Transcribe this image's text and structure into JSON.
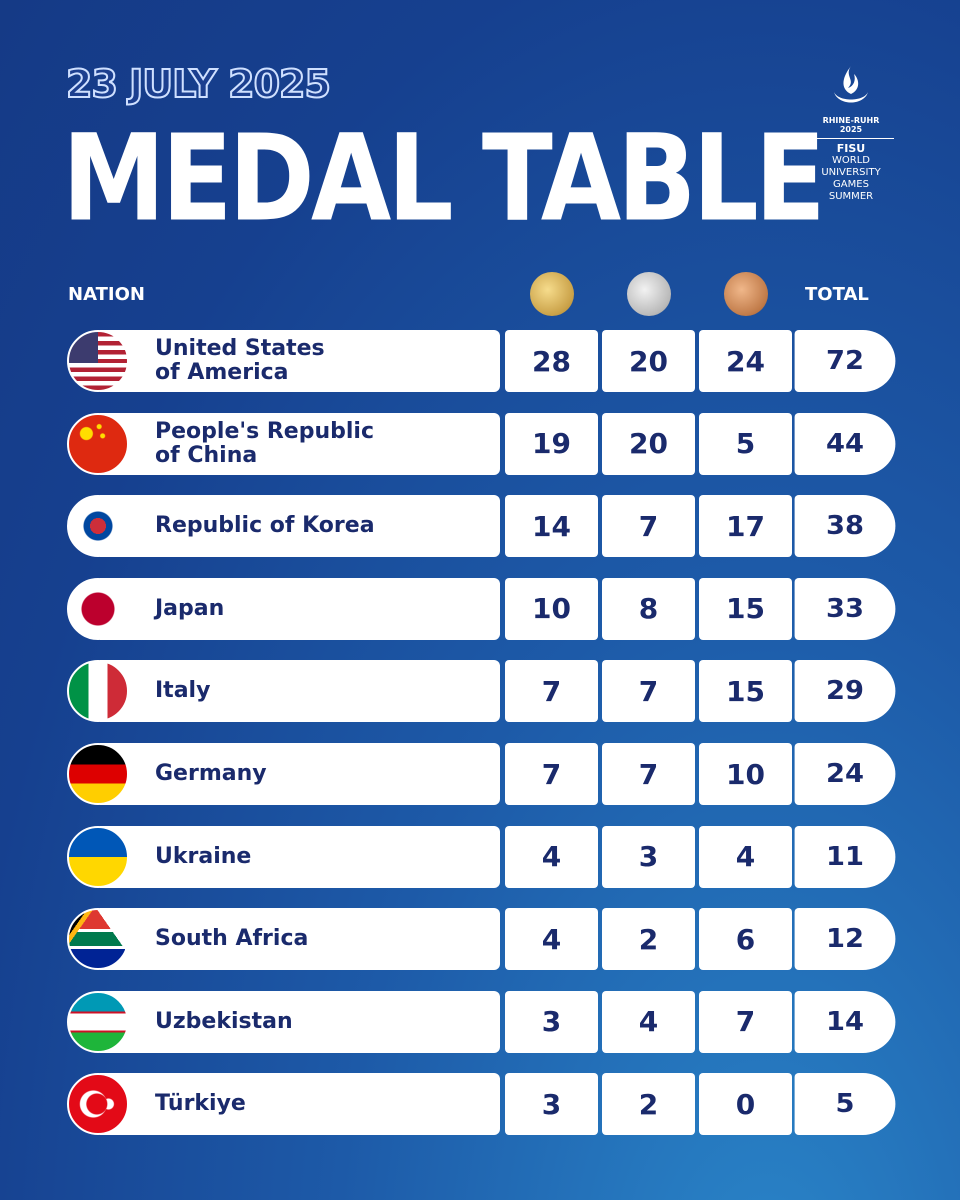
{
  "date": "23 JULY 2025",
  "title": "MEDAL TABLE",
  "logo": {
    "event": "RHINE-RUHR",
    "year": "2025",
    "org": "FISU",
    "lines": [
      "WORLD",
      "UNIVERSITY",
      "GAMES",
      "SUMMER"
    ]
  },
  "header": {
    "nation": "NATION",
    "total": "TOTAL"
  },
  "rows": [
    {
      "nation": [
        "United States",
        "of America"
      ],
      "gold": 28,
      "silver": 20,
      "bronze": 24,
      "total": 72
    },
    {
      "nation": [
        "People's Republic",
        "of China"
      ],
      "gold": 19,
      "silver": 20,
      "bronze": 5,
      "total": 44
    },
    {
      "nation": [
        "Republic of Korea"
      ],
      "gold": 14,
      "silver": 7,
      "bronze": 17,
      "total": 38
    },
    {
      "nation": [
        "Japan"
      ],
      "gold": 10,
      "silver": 8,
      "bronze": 15,
      "total": 33
    },
    {
      "nation": [
        "Italy"
      ],
      "gold": 7,
      "silver": 7,
      "bronze": 15,
      "total": 29
    },
    {
      "nation": [
        "Germany"
      ],
      "gold": 7,
      "silver": 7,
      "bronze": 10,
      "total": 24
    },
    {
      "nation": [
        "Ukraine"
      ],
      "gold": 4,
      "silver": 3,
      "bronze": 4,
      "total": 11
    },
    {
      "nation": [
        "South Africa"
      ],
      "gold": 4,
      "silver": 2,
      "bronze": 6,
      "total": 12
    },
    {
      "nation": [
        "Uzbekistan"
      ],
      "gold": 3,
      "silver": 4,
      "bronze": 7,
      "total": 14
    },
    {
      "nation": [
        "Türkiye"
      ],
      "gold": 3,
      "silver": 2,
      "bronze": 0,
      "total": 5
    }
  ]
}
